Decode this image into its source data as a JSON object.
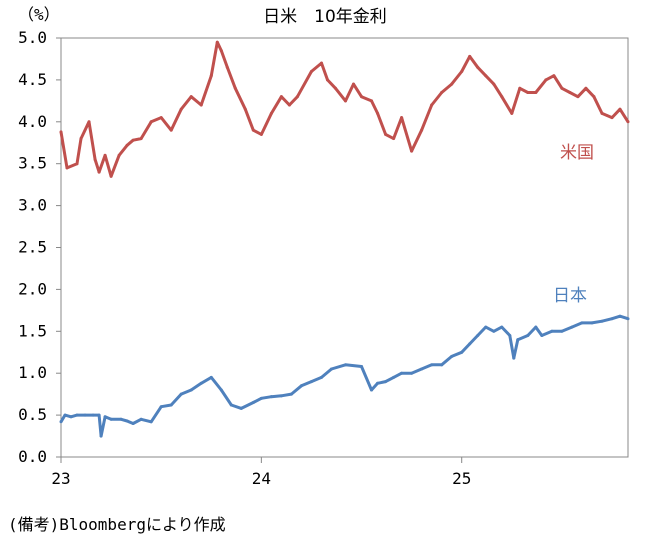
{
  "chart_data": {
    "type": "line",
    "title": "日米　10年金利",
    "unit_label": "（%）",
    "xlabel": "",
    "ylabel": "",
    "ylim": [
      0.0,
      5.0
    ],
    "y_ticks": [
      "0.0",
      "0.5",
      "1.0",
      "1.5",
      "2.0",
      "2.5",
      "3.0",
      "3.5",
      "4.0",
      "4.5",
      "5.0"
    ],
    "xlim": [
      2023.0,
      2025.83
    ],
    "x_ticks": [
      {
        "value": 2023,
        "label": "23"
      },
      {
        "value": 2024,
        "label": "24"
      },
      {
        "value": 2025,
        "label": "25"
      }
    ],
    "grid": false,
    "series": [
      {
        "name": "米国",
        "color": "#c0504d",
        "x": [
          2023.0,
          2023.03,
          2023.08,
          2023.1,
          2023.14,
          2023.17,
          2023.19,
          2023.22,
          2023.25,
          2023.29,
          2023.33,
          2023.36,
          2023.4,
          2023.45,
          2023.5,
          2023.55,
          2023.6,
          2023.65,
          2023.7,
          2023.75,
          2023.78,
          2023.8,
          2023.83,
          2023.87,
          2023.92,
          2023.96,
          2024.0,
          2024.05,
          2024.1,
          2024.14,
          2024.18,
          2024.25,
          2024.3,
          2024.33,
          2024.37,
          2024.42,
          2024.46,
          2024.5,
          2024.55,
          2024.58,
          2024.62,
          2024.66,
          2024.7,
          2024.75,
          2024.8,
          2024.85,
          2024.9,
          2024.95,
          2025.0,
          2025.04,
          2025.08,
          2025.12,
          2025.16,
          2025.2,
          2025.25,
          2025.29,
          2025.33,
          2025.37,
          2025.42,
          2025.46,
          2025.5,
          2025.54,
          2025.58,
          2025.62,
          2025.66,
          2025.7,
          2025.75,
          2025.79,
          2025.83
        ],
        "values": [
          3.88,
          3.45,
          3.5,
          3.8,
          4.0,
          3.55,
          3.4,
          3.6,
          3.35,
          3.6,
          3.72,
          3.78,
          3.8,
          4.0,
          4.05,
          3.9,
          4.15,
          4.3,
          4.2,
          4.55,
          4.95,
          4.85,
          4.65,
          4.4,
          4.15,
          3.9,
          3.85,
          4.1,
          4.3,
          4.2,
          4.3,
          4.6,
          4.7,
          4.5,
          4.4,
          4.25,
          4.45,
          4.3,
          4.25,
          4.1,
          3.85,
          3.8,
          4.05,
          3.65,
          3.9,
          4.2,
          4.35,
          4.45,
          4.6,
          4.78,
          4.65,
          4.55,
          4.45,
          4.3,
          4.1,
          4.4,
          4.35,
          4.35,
          4.5,
          4.55,
          4.4,
          4.35,
          4.3,
          4.4,
          4.3,
          4.1,
          4.05,
          4.15,
          4.0
        ]
      },
      {
        "name": "日本",
        "color": "#4f81bd",
        "x": [
          2023.0,
          2023.02,
          2023.05,
          2023.08,
          2023.12,
          2023.16,
          2023.19,
          2023.2,
          2023.22,
          2023.25,
          2023.3,
          2023.33,
          2023.36,
          2023.4,
          2023.45,
          2023.5,
          2023.55,
          2023.6,
          2023.65,
          2023.7,
          2023.75,
          2023.8,
          2023.85,
          2023.9,
          2023.96,
          2024.0,
          2024.05,
          2024.1,
          2024.15,
          2024.2,
          2024.25,
          2024.3,
          2024.35,
          2024.42,
          2024.5,
          2024.55,
          2024.58,
          2024.62,
          2024.66,
          2024.7,
          2024.75,
          2024.8,
          2024.85,
          2024.9,
          2024.95,
          2025.0,
          2025.04,
          2025.08,
          2025.12,
          2025.16,
          2025.2,
          2025.24,
          2025.26,
          2025.28,
          2025.33,
          2025.37,
          2025.4,
          2025.45,
          2025.5,
          2025.55,
          2025.6,
          2025.65,
          2025.7,
          2025.75,
          2025.79,
          2025.83
        ],
        "values": [
          0.42,
          0.5,
          0.48,
          0.5,
          0.5,
          0.5,
          0.5,
          0.25,
          0.48,
          0.45,
          0.45,
          0.43,
          0.4,
          0.45,
          0.42,
          0.6,
          0.62,
          0.75,
          0.8,
          0.88,
          0.95,
          0.8,
          0.62,
          0.58,
          0.65,
          0.7,
          0.72,
          0.73,
          0.75,
          0.85,
          0.9,
          0.95,
          1.05,
          1.1,
          1.08,
          0.8,
          0.88,
          0.9,
          0.95,
          1.0,
          1.0,
          1.05,
          1.1,
          1.1,
          1.2,
          1.25,
          1.35,
          1.45,
          1.55,
          1.5,
          1.55,
          1.45,
          1.18,
          1.4,
          1.45,
          1.55,
          1.45,
          1.5,
          1.5,
          1.55,
          1.6,
          1.6,
          1.62,
          1.65,
          1.68,
          1.65
        ]
      }
    ],
    "annotations": [
      {
        "text": "米国",
        "series": "米国"
      },
      {
        "text": "日本",
        "series": "日本"
      }
    ]
  },
  "source_text": "(備考)Bloombergにより作成"
}
